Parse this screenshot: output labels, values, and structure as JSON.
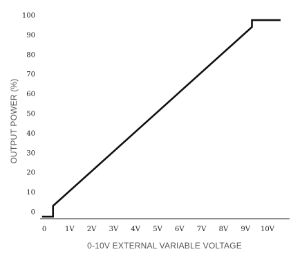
{
  "chart_data": {
    "type": "line",
    "xlabel": "0-10V EXTERNAL VARIABLE VOLTAGE",
    "ylabel": "OUTPUT POWER (%)",
    "x_ticks": [
      {
        "value": 0,
        "label": "0"
      },
      {
        "value": 1,
        "label": "1V"
      },
      {
        "value": 2,
        "label": "2V"
      },
      {
        "value": 3,
        "label": "3V"
      },
      {
        "value": 4,
        "label": "4V"
      },
      {
        "value": 5,
        "label": "5V"
      },
      {
        "value": 6,
        "label": "6V"
      },
      {
        "value": 7,
        "label": "7V"
      },
      {
        "value": 8,
        "label": "8V"
      },
      {
        "value": 9,
        "label": "9V"
      },
      {
        "value": 10,
        "label": "10V"
      }
    ],
    "y_ticks": [
      {
        "value": 0,
        "label": "0"
      },
      {
        "value": 10,
        "label": "10"
      },
      {
        "value": 20,
        "label": "20"
      },
      {
        "value": 30,
        "label": "30"
      },
      {
        "value": 40,
        "label": "40"
      },
      {
        "value": 50,
        "label": "50"
      },
      {
        "value": 60,
        "label": "60"
      },
      {
        "value": 70,
        "label": "70"
      },
      {
        "value": 80,
        "label": "80"
      },
      {
        "value": 90,
        "label": "90"
      },
      {
        "value": 100,
        "label": "100"
      }
    ],
    "xlim": [
      0,
      11
    ],
    "ylim": [
      -3,
      103
    ],
    "grid": false,
    "legend": "none",
    "series": [
      {
        "color": "#111111",
        "points": [
          [
            -0.1,
            -2.5
          ],
          [
            0.4,
            -2.5
          ],
          [
            0.4,
            3
          ],
          [
            9.45,
            94
          ],
          [
            9.45,
            97.5
          ],
          [
            10.75,
            97.5
          ]
        ]
      }
    ]
  }
}
